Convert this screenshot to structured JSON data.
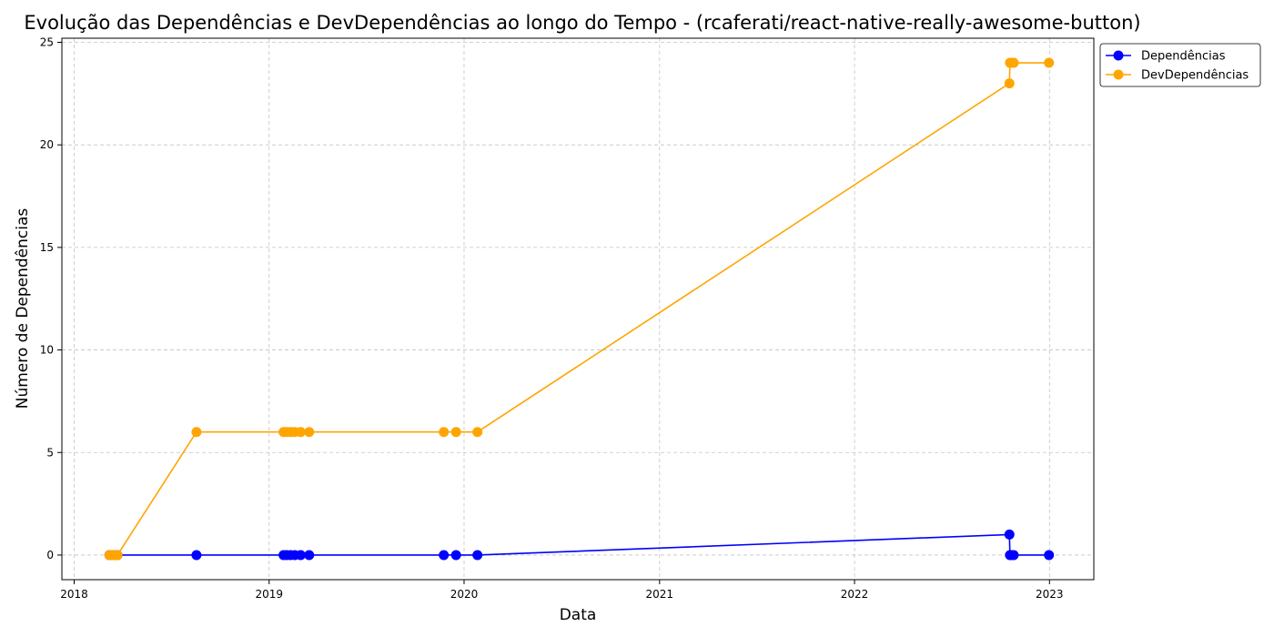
{
  "chart_data": {
    "type": "line",
    "title": "Evolução das Dependências e DevDependências ao longo do Tempo - (rcaferati/react-native-really-awesome-button)",
    "xlabel": "Data",
    "ylabel": "Número de Dependências",
    "xlim": [
      "2017-12-09",
      "2023-03-25"
    ],
    "ylim": [
      -1.2,
      25.2
    ],
    "x_ticks": [
      "2018",
      "2019",
      "2020",
      "2021",
      "2022",
      "2023"
    ],
    "y_ticks": [
      0,
      5,
      10,
      15,
      20,
      25
    ],
    "grid": true,
    "legend_position": "outside-top-right",
    "series": [
      {
        "name": "Dependências",
        "color": "#0000ff",
        "points": [
          {
            "x": "2018-03-08",
            "y": 0
          },
          {
            "x": "2018-03-11",
            "y": 0
          },
          {
            "x": "2018-03-14",
            "y": 0
          },
          {
            "x": "2018-03-17",
            "y": 0
          },
          {
            "x": "2018-03-20",
            "y": 0
          },
          {
            "x": "2018-03-23",
            "y": 0
          },
          {
            "x": "2018-08-18",
            "y": 0
          },
          {
            "x": "2019-01-28",
            "y": 0
          },
          {
            "x": "2019-02-03",
            "y": 0
          },
          {
            "x": "2019-02-10",
            "y": 0
          },
          {
            "x": "2019-02-18",
            "y": 0
          },
          {
            "x": "2019-03-01",
            "y": 0
          },
          {
            "x": "2019-03-17",
            "y": 0
          },
          {
            "x": "2019-11-24",
            "y": 0
          },
          {
            "x": "2019-12-17",
            "y": 0
          },
          {
            "x": "2020-01-26",
            "y": 0
          },
          {
            "x": "2022-10-18",
            "y": 1
          },
          {
            "x": "2022-10-19",
            "y": 0
          },
          {
            "x": "2022-10-22",
            "y": 0
          },
          {
            "x": "2022-10-26",
            "y": 0
          },
          {
            "x": "2022-12-31",
            "y": 0
          }
        ]
      },
      {
        "name": "DevDependências",
        "color": "#ffa500",
        "points": [
          {
            "x": "2018-03-08",
            "y": 0
          },
          {
            "x": "2018-03-11",
            "y": 0
          },
          {
            "x": "2018-03-14",
            "y": 0
          },
          {
            "x": "2018-03-17",
            "y": 0
          },
          {
            "x": "2018-03-20",
            "y": 0
          },
          {
            "x": "2018-03-23",
            "y": 0
          },
          {
            "x": "2018-08-18",
            "y": 6
          },
          {
            "x": "2019-01-28",
            "y": 6
          },
          {
            "x": "2019-02-03",
            "y": 6
          },
          {
            "x": "2019-02-10",
            "y": 6
          },
          {
            "x": "2019-02-18",
            "y": 6
          },
          {
            "x": "2019-03-01",
            "y": 6
          },
          {
            "x": "2019-03-17",
            "y": 6
          },
          {
            "x": "2019-11-24",
            "y": 6
          },
          {
            "x": "2019-12-17",
            "y": 6
          },
          {
            "x": "2020-01-26",
            "y": 6
          },
          {
            "x": "2022-10-18",
            "y": 23
          },
          {
            "x": "2022-10-19",
            "y": 24
          },
          {
            "x": "2022-10-22",
            "y": 24
          },
          {
            "x": "2022-10-26",
            "y": 24
          },
          {
            "x": "2022-12-31",
            "y": 24
          }
        ]
      }
    ]
  }
}
